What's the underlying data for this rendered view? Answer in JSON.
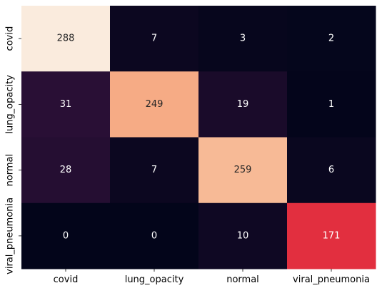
{
  "chart_data": {
    "type": "heatmap",
    "title": "",
    "xlabel": "",
    "ylabel": "",
    "x_categories": [
      "covid",
      "lung_opacity",
      "normal",
      "viral_pneumonia"
    ],
    "y_categories": [
      "covid",
      "lung_opacity",
      "normal",
      "viral_pneumonia"
    ],
    "values": [
      [
        288,
        7,
        3,
        2
      ],
      [
        31,
        249,
        19,
        1
      ],
      [
        28,
        7,
        259,
        6
      ],
      [
        0,
        0,
        10,
        171
      ]
    ],
    "value_range": [
      0,
      288
    ],
    "colormap": "rocket",
    "colorbar": false,
    "annotations": true,
    "grid": false
  }
}
